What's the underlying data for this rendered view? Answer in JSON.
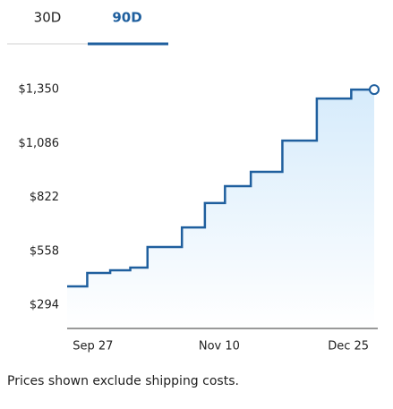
{
  "tabs": [
    "30D",
    "90D"
  ],
  "chart_data": {
    "type": "step",
    "x": [
      -9,
      -2,
      6,
      13,
      19,
      31,
      39,
      46,
      55,
      66,
      78,
      90,
      98
    ],
    "series": [
      {
        "color": "#1f5f9e",
        "values": [
          386,
          452,
          465,
          478,
          579,
          675,
          794,
          877,
          947,
          1100,
          1306,
          1350,
          1350
        ]
      }
    ],
    "xlim": [
      -9,
      98
    ],
    "xticks": [
      {
        "value": 0,
        "label": "Sep 27"
      },
      {
        "value": 44,
        "label": "Nov 10"
      },
      {
        "value": 89,
        "label": "Dec 25"
      }
    ],
    "ylim": [
      180,
      1438
    ],
    "yticks": [
      {
        "value": 294,
        "label": "$294"
      },
      {
        "value": 558,
        "label": "$558"
      },
      {
        "value": 822,
        "label": "$822"
      },
      {
        "value": 1086,
        "label": "$1,086"
      },
      {
        "value": 1350,
        "label": "$1,350"
      }
    ],
    "grid": false,
    "note": "Prices shown exclude shipping costs."
  }
}
